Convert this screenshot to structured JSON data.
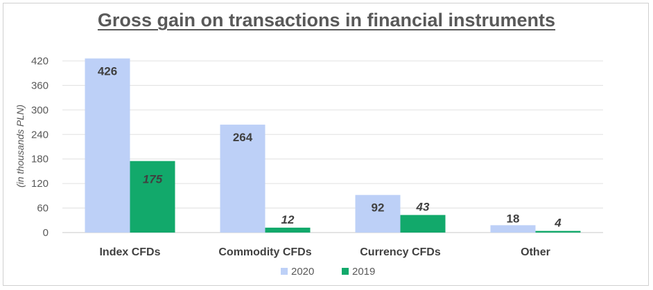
{
  "chart_data": {
    "type": "bar",
    "title": "Gross gain on transactions in financial instruments",
    "ylabel": "(in thousands PLN)",
    "xlabel": "",
    "categories": [
      "Index CFDs",
      "Commodity CFDs",
      "Currency CFDs",
      "Other"
    ],
    "series": [
      {
        "name": "2020",
        "values": [
          426,
          264,
          92,
          18
        ],
        "color": "#bdd0f7"
      },
      {
        "name": "2019",
        "values": [
          175,
          12,
          43,
          4
        ],
        "color": "#12a96b"
      }
    ],
    "ylim": [
      0,
      420
    ],
    "yticks": [
      0,
      60,
      120,
      180,
      240,
      300,
      360,
      420
    ],
    "grid": true,
    "legend": "bottom"
  }
}
